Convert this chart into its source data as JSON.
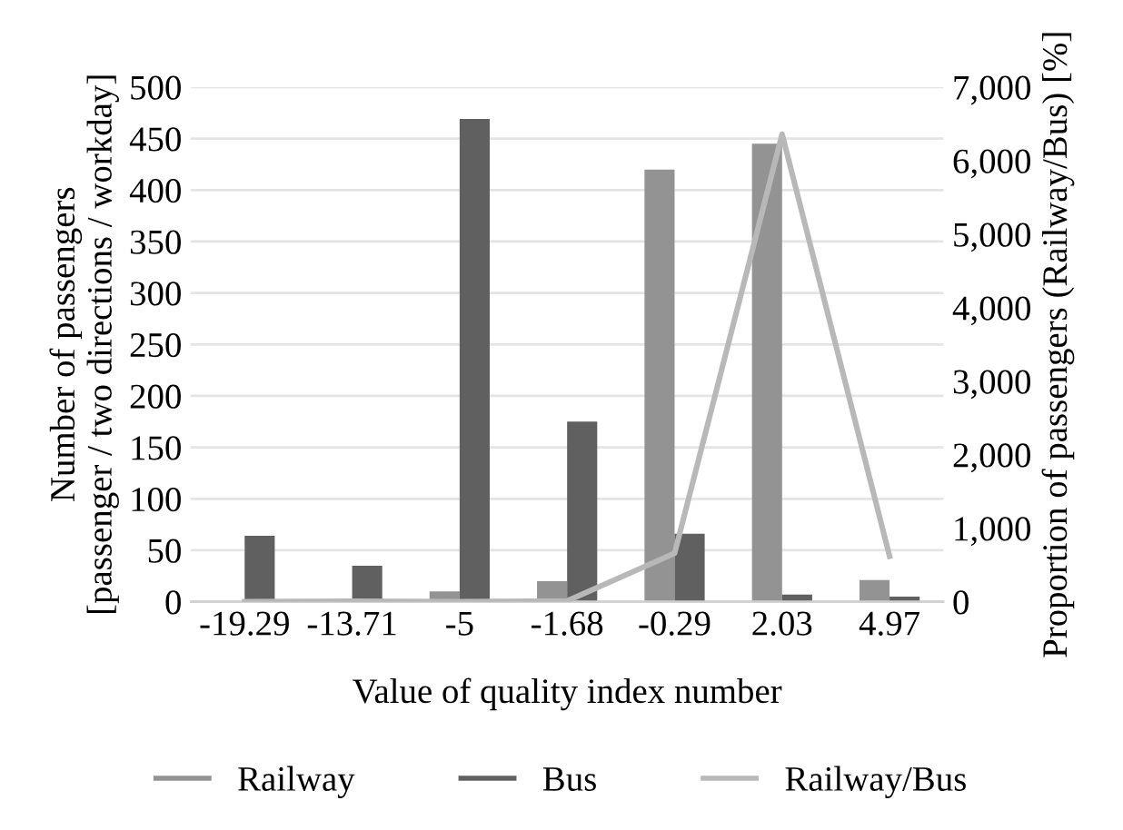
{
  "chart_data": {
    "type": "bar",
    "xlabel": "Value of quality index number",
    "ylabel": "Number of passengers\n[passenger / two directions / workday]",
    "y2label": "Proportion of passengers (Railway/Bus) [%]",
    "categories": [
      "-19.29",
      "-13.71",
      "-5",
      "-1.68",
      "-0.29",
      "2.03",
      "4.97"
    ],
    "series": [
      {
        "name": "Railway",
        "color": "#939393",
        "values": [
          0,
          2,
          10,
          20,
          420,
          445,
          21
        ]
      },
      {
        "name": "Bus",
        "color": "#606060",
        "values": [
          64,
          35,
          469,
          175,
          66,
          7,
          5
        ]
      },
      {
        "name": "Railway/Bus",
        "type": "line",
        "axis": "y2",
        "color": "#b8b8b8",
        "values": [
          0,
          6,
          2,
          11,
          660,
          6360,
          620
        ]
      }
    ],
    "ylim": [
      0,
      500
    ],
    "yticks": [
      0,
      50,
      100,
      150,
      200,
      250,
      300,
      350,
      400,
      450,
      500
    ],
    "y2lim": [
      0,
      7000
    ],
    "y2ticks": [
      0,
      {
        "value": 1000,
        "label": "1,000"
      },
      {
        "value": 2000,
        "label": "2,000"
      },
      {
        "value": 3000,
        "label": "3,000"
      },
      {
        "value": 4000,
        "label": "4,000"
      },
      {
        "value": 5000,
        "label": "5,000"
      },
      {
        "value": 6000,
        "label": "6,000"
      },
      {
        "value": 7000,
        "label": "7,000"
      }
    ],
    "grid": "y",
    "legend": "bottom",
    "marker": "none",
    "line_style": "solid"
  }
}
